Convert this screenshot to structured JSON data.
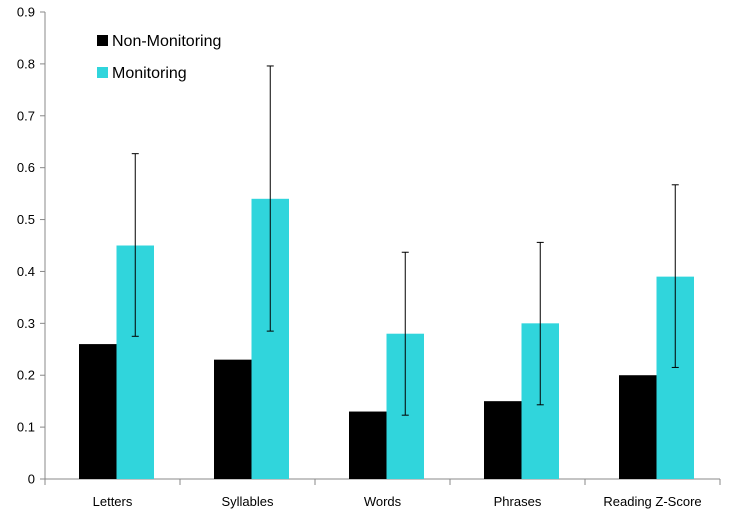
{
  "chart_data": {
    "type": "bar",
    "title": "",
    "xlabel": "",
    "ylabel": "",
    "categories": [
      "Letters",
      "Syllables",
      "Words",
      "Phrases",
      "Reading Z-Score"
    ],
    "series": [
      {
        "name": "Non-Monitoring",
        "color": "#000000",
        "values": [
          0.26,
          0.23,
          0.13,
          0.15,
          0.2
        ]
      },
      {
        "name": "Monitoring",
        "color": "#30D5DC",
        "values": [
          0.45,
          0.54,
          0.28,
          0.3,
          0.39
        ],
        "error_low": [
          0.275,
          0.285,
          0.123,
          0.143,
          0.215
        ],
        "error_high": [
          0.627,
          0.796,
          0.437,
          0.456,
          0.567
        ]
      }
    ],
    "ylim": [
      0,
      0.9
    ],
    "yticks": [
      "0",
      "0.1",
      "0.2",
      "0.3",
      "0.4",
      "0.5",
      "0.6",
      "0.7",
      "0.8",
      "0.9"
    ],
    "grid": false,
    "legend_position": "top-left"
  }
}
